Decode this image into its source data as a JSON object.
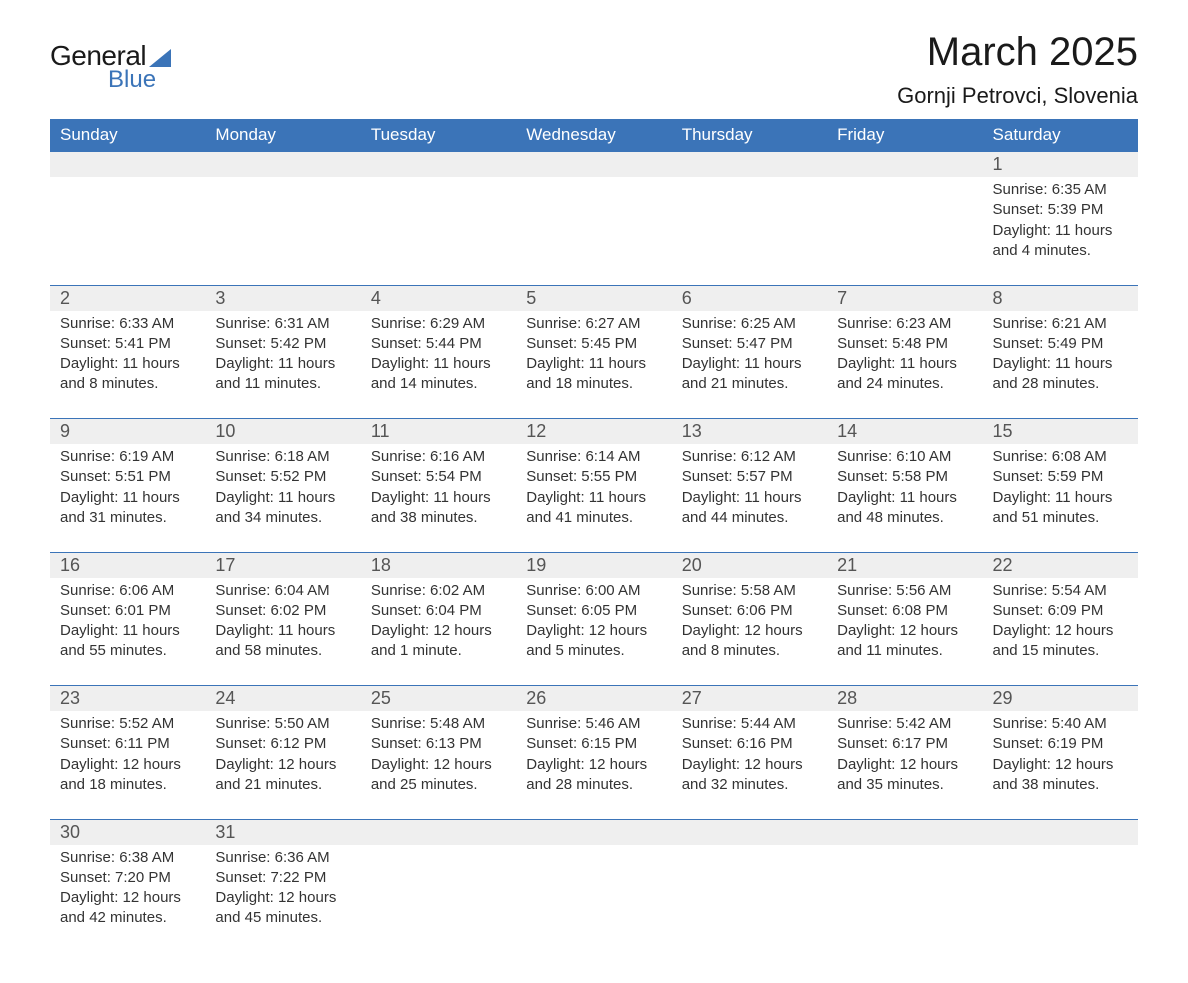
{
  "logo": {
    "text1": "General",
    "text2": "Blue"
  },
  "title": {
    "month": "March 2025",
    "location": "Gornji Petrovci, Slovenia"
  },
  "headers": [
    "Sunday",
    "Monday",
    "Tuesday",
    "Wednesday",
    "Thursday",
    "Friday",
    "Saturday"
  ],
  "colors": {
    "header_bg": "#3b74b8",
    "header_text": "#ffffff",
    "daynum_bg": "#efefef",
    "row_border": "#3b74b8",
    "text": "#333333",
    "daynum_text": "#555555",
    "logo_accent": "#3b74b8"
  },
  "fontsizes": {
    "title_month": 40,
    "title_location": 22,
    "header": 17,
    "daynum": 18,
    "body": 15
  },
  "weeks": [
    [
      null,
      null,
      null,
      null,
      null,
      null,
      {
        "n": "1",
        "sr": "Sunrise: 6:35 AM",
        "ss": "Sunset: 5:39 PM",
        "d1": "Daylight: 11 hours",
        "d2": "and 4 minutes."
      }
    ],
    [
      {
        "n": "2",
        "sr": "Sunrise: 6:33 AM",
        "ss": "Sunset: 5:41 PM",
        "d1": "Daylight: 11 hours",
        "d2": "and 8 minutes."
      },
      {
        "n": "3",
        "sr": "Sunrise: 6:31 AM",
        "ss": "Sunset: 5:42 PM",
        "d1": "Daylight: 11 hours",
        "d2": "and 11 minutes."
      },
      {
        "n": "4",
        "sr": "Sunrise: 6:29 AM",
        "ss": "Sunset: 5:44 PM",
        "d1": "Daylight: 11 hours",
        "d2": "and 14 minutes."
      },
      {
        "n": "5",
        "sr": "Sunrise: 6:27 AM",
        "ss": "Sunset: 5:45 PM",
        "d1": "Daylight: 11 hours",
        "d2": "and 18 minutes."
      },
      {
        "n": "6",
        "sr": "Sunrise: 6:25 AM",
        "ss": "Sunset: 5:47 PM",
        "d1": "Daylight: 11 hours",
        "d2": "and 21 minutes."
      },
      {
        "n": "7",
        "sr": "Sunrise: 6:23 AM",
        "ss": "Sunset: 5:48 PM",
        "d1": "Daylight: 11 hours",
        "d2": "and 24 minutes."
      },
      {
        "n": "8",
        "sr": "Sunrise: 6:21 AM",
        "ss": "Sunset: 5:49 PM",
        "d1": "Daylight: 11 hours",
        "d2": "and 28 minutes."
      }
    ],
    [
      {
        "n": "9",
        "sr": "Sunrise: 6:19 AM",
        "ss": "Sunset: 5:51 PM",
        "d1": "Daylight: 11 hours",
        "d2": "and 31 minutes."
      },
      {
        "n": "10",
        "sr": "Sunrise: 6:18 AM",
        "ss": "Sunset: 5:52 PM",
        "d1": "Daylight: 11 hours",
        "d2": "and 34 minutes."
      },
      {
        "n": "11",
        "sr": "Sunrise: 6:16 AM",
        "ss": "Sunset: 5:54 PM",
        "d1": "Daylight: 11 hours",
        "d2": "and 38 minutes."
      },
      {
        "n": "12",
        "sr": "Sunrise: 6:14 AM",
        "ss": "Sunset: 5:55 PM",
        "d1": "Daylight: 11 hours",
        "d2": "and 41 minutes."
      },
      {
        "n": "13",
        "sr": "Sunrise: 6:12 AM",
        "ss": "Sunset: 5:57 PM",
        "d1": "Daylight: 11 hours",
        "d2": "and 44 minutes."
      },
      {
        "n": "14",
        "sr": "Sunrise: 6:10 AM",
        "ss": "Sunset: 5:58 PM",
        "d1": "Daylight: 11 hours",
        "d2": "and 48 minutes."
      },
      {
        "n": "15",
        "sr": "Sunrise: 6:08 AM",
        "ss": "Sunset: 5:59 PM",
        "d1": "Daylight: 11 hours",
        "d2": "and 51 minutes."
      }
    ],
    [
      {
        "n": "16",
        "sr": "Sunrise: 6:06 AM",
        "ss": "Sunset: 6:01 PM",
        "d1": "Daylight: 11 hours",
        "d2": "and 55 minutes."
      },
      {
        "n": "17",
        "sr": "Sunrise: 6:04 AM",
        "ss": "Sunset: 6:02 PM",
        "d1": "Daylight: 11 hours",
        "d2": "and 58 minutes."
      },
      {
        "n": "18",
        "sr": "Sunrise: 6:02 AM",
        "ss": "Sunset: 6:04 PM",
        "d1": "Daylight: 12 hours",
        "d2": "and 1 minute."
      },
      {
        "n": "19",
        "sr": "Sunrise: 6:00 AM",
        "ss": "Sunset: 6:05 PM",
        "d1": "Daylight: 12 hours",
        "d2": "and 5 minutes."
      },
      {
        "n": "20",
        "sr": "Sunrise: 5:58 AM",
        "ss": "Sunset: 6:06 PM",
        "d1": "Daylight: 12 hours",
        "d2": "and 8 minutes."
      },
      {
        "n": "21",
        "sr": "Sunrise: 5:56 AM",
        "ss": "Sunset: 6:08 PM",
        "d1": "Daylight: 12 hours",
        "d2": "and 11 minutes."
      },
      {
        "n": "22",
        "sr": "Sunrise: 5:54 AM",
        "ss": "Sunset: 6:09 PM",
        "d1": "Daylight: 12 hours",
        "d2": "and 15 minutes."
      }
    ],
    [
      {
        "n": "23",
        "sr": "Sunrise: 5:52 AM",
        "ss": "Sunset: 6:11 PM",
        "d1": "Daylight: 12 hours",
        "d2": "and 18 minutes."
      },
      {
        "n": "24",
        "sr": "Sunrise: 5:50 AM",
        "ss": "Sunset: 6:12 PM",
        "d1": "Daylight: 12 hours",
        "d2": "and 21 minutes."
      },
      {
        "n": "25",
        "sr": "Sunrise: 5:48 AM",
        "ss": "Sunset: 6:13 PM",
        "d1": "Daylight: 12 hours",
        "d2": "and 25 minutes."
      },
      {
        "n": "26",
        "sr": "Sunrise: 5:46 AM",
        "ss": "Sunset: 6:15 PM",
        "d1": "Daylight: 12 hours",
        "d2": "and 28 minutes."
      },
      {
        "n": "27",
        "sr": "Sunrise: 5:44 AM",
        "ss": "Sunset: 6:16 PM",
        "d1": "Daylight: 12 hours",
        "d2": "and 32 minutes."
      },
      {
        "n": "28",
        "sr": "Sunrise: 5:42 AM",
        "ss": "Sunset: 6:17 PM",
        "d1": "Daylight: 12 hours",
        "d2": "and 35 minutes."
      },
      {
        "n": "29",
        "sr": "Sunrise: 5:40 AM",
        "ss": "Sunset: 6:19 PM",
        "d1": "Daylight: 12 hours",
        "d2": "and 38 minutes."
      }
    ],
    [
      {
        "n": "30",
        "sr": "Sunrise: 6:38 AM",
        "ss": "Sunset: 7:20 PM",
        "d1": "Daylight: 12 hours",
        "d2": "and 42 minutes."
      },
      {
        "n": "31",
        "sr": "Sunrise: 6:36 AM",
        "ss": "Sunset: 7:22 PM",
        "d1": "Daylight: 12 hours",
        "d2": "and 45 minutes."
      },
      null,
      null,
      null,
      null,
      null
    ]
  ]
}
